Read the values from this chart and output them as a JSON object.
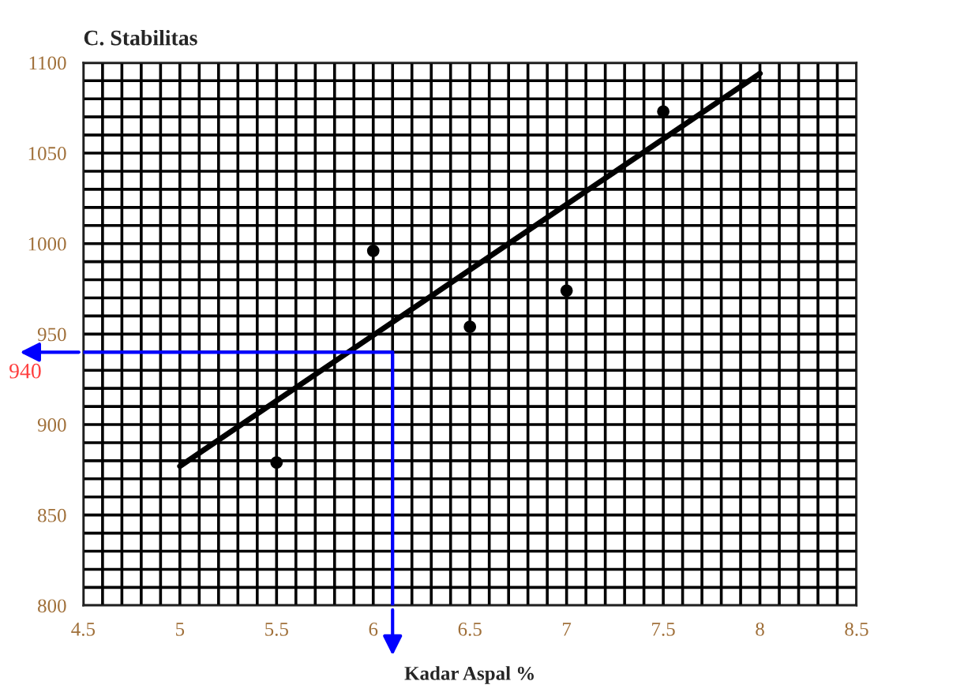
{
  "chart_data": {
    "type": "scatter",
    "title": "C. Stabilitas",
    "xlabel": "Kadar Aspal %",
    "series": [
      {
        "color": "#000000",
        "x": [
          5.5,
          6,
          6.5,
          7,
          7.5
        ],
        "values": [
          879,
          996,
          954,
          974,
          1073
        ],
        "marker": "circle"
      },
      {
        "type": "line",
        "color": "#000000",
        "x": [
          5,
          8
        ],
        "values": [
          877,
          1094
        ],
        "marker": "none",
        "line_style": "solid"
      }
    ],
    "xlim": [
      4.5,
      8.5
    ],
    "xticks": [
      4.5,
      5,
      5.5,
      6,
      6.5,
      7,
      7.5,
      8,
      8.5
    ],
    "ylim": [
      800,
      1100
    ],
    "yticks": [
      800,
      850,
      900,
      950,
      1000,
      1050,
      1100
    ],
    "grid": true,
    "ref_lines": [
      {
        "axis": "y",
        "value": 940,
        "label": "940",
        "color": "#0000ff"
      },
      {
        "axis": "x",
        "value": 6.1,
        "label": null,
        "color": "#0000ff"
      }
    ]
  }
}
